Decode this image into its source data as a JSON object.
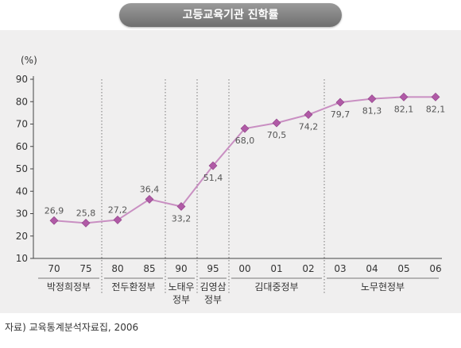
{
  "header": {
    "title": "고등교육기관 진학률"
  },
  "chart_data": {
    "type": "line",
    "title": "고등교육기관 진학률",
    "xlabel": "",
    "ylabel": "(%)",
    "ylim": [
      10,
      90
    ],
    "yticks": [
      "10",
      "20",
      "30",
      "40",
      "50",
      "60",
      "70",
      "80",
      "90"
    ],
    "categories": [
      "70",
      "75",
      "80",
      "85",
      "90",
      "95",
      "00",
      "01",
      "02",
      "03",
      "04",
      "05",
      "06"
    ],
    "values": [
      26.9,
      25.8,
      27.2,
      36.4,
      33.2,
      51.4,
      68.0,
      70.5,
      74.2,
      79.7,
      81.3,
      82.1,
      82.1
    ],
    "value_labels": [
      "26,9",
      "25,8",
      "27,2",
      "36,4",
      "33,2",
      "51,4",
      "68,0",
      "70,5",
      "74,2",
      "79,7",
      "81,3",
      "82,1",
      "82,1"
    ],
    "label_position": [
      "above",
      "above",
      "above",
      "above",
      "below",
      "below",
      "below",
      "below",
      "below",
      "below",
      "below",
      "below",
      "below"
    ],
    "grid": false,
    "line_color": "#c98fc2",
    "marker_color": "#b05aa6",
    "periods": [
      {
        "lines": [
          "박정희정부"
        ],
        "start": 0,
        "end": 1
      },
      {
        "lines": [
          "전두환정부"
        ],
        "start": 2,
        "end": 3
      },
      {
        "lines": [
          "노태우",
          "정부"
        ],
        "start": 4,
        "end": 4
      },
      {
        "lines": [
          "김영삼",
          "정부"
        ],
        "start": 5,
        "end": 5
      },
      {
        "lines": [
          "김대중정부"
        ],
        "start": 6,
        "end": 8
      },
      {
        "lines": [
          "노무현정부"
        ],
        "start": 9,
        "end": 12
      }
    ]
  },
  "footer": {
    "source": "자료) 교육통계분석자료집, 2006"
  }
}
